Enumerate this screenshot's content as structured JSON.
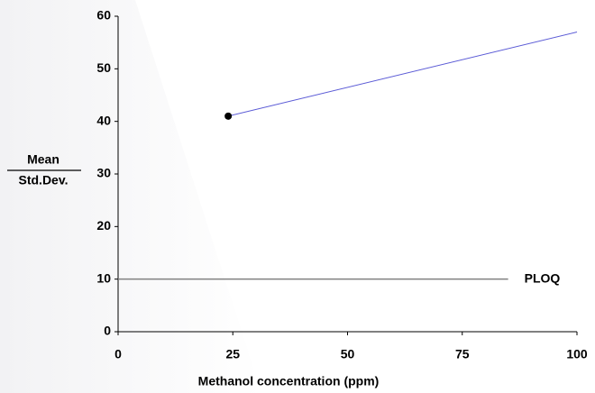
{
  "chart_data": {
    "type": "line",
    "x_label": "Methanol concentration (ppm)",
    "y_label_numerator": "Mean",
    "y_label_denominator": "Std.Dev.",
    "xlim": [
      0,
      100
    ],
    "xticks": [
      0,
      25,
      50,
      75,
      100
    ],
    "ylim": [
      0,
      60
    ],
    "yticks": [
      0,
      10,
      20,
      30,
      40,
      50,
      60
    ],
    "grid": false,
    "series": [
      {
        "type": "line",
        "color": "#5b5bd6",
        "x": [
          24,
          100
        ],
        "values": [
          41,
          57
        ]
      },
      {
        "type": "scatter",
        "color": "#000000",
        "x": [
          24
        ],
        "values": [
          41
        ]
      }
    ],
    "reference_lines": [
      {
        "label": "PLOQ",
        "value": 10,
        "x_start": 0,
        "x_end": 85,
        "color": "#808080"
      }
    ]
  }
}
